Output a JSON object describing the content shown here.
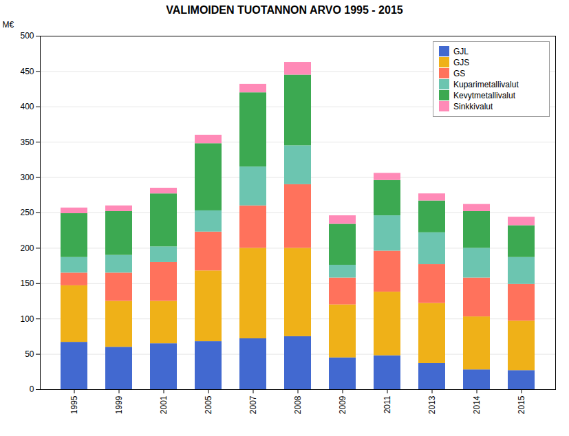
{
  "chart_data": {
    "type": "bar",
    "title": "VALIMOIDEN TUOTANNON ARVO 1995 - 2015",
    "ylabel": "M€",
    "categories": [
      "1995",
      "1999",
      "2001",
      "2005",
      "2007",
      "2008",
      "2009",
      "2011",
      "2013",
      "2014",
      "2015"
    ],
    "series": [
      {
        "name": "GJL",
        "values": [
          67,
          60,
          65,
          68,
          72,
          75,
          45,
          48,
          37,
          28,
          27
        ]
      },
      {
        "name": "GJS",
        "values": [
          80,
          65,
          60,
          100,
          128,
          125,
          75,
          90,
          85,
          75,
          70
        ]
      },
      {
        "name": "GS",
        "values": [
          18,
          40,
          55,
          55,
          60,
          90,
          38,
          58,
          55,
          55,
          52
        ]
      },
      {
        "name": "Kuparimetallivalut",
        "values": [
          22,
          25,
          22,
          30,
          55,
          55,
          18,
          50,
          45,
          42,
          38
        ]
      },
      {
        "name": "Kevytmetallivalut",
        "values": [
          62,
          62,
          75,
          95,
          105,
          100,
          58,
          50,
          45,
          52,
          45
        ]
      },
      {
        "name": "Sinkkivalut",
        "values": [
          8,
          8,
          8,
          12,
          12,
          18,
          12,
          10,
          10,
          10,
          12
        ]
      }
    ],
    "stacked": true,
    "ylim": [
      0,
      500
    ],
    "yticks": [
      0,
      50,
      100,
      150,
      200,
      250,
      300,
      350,
      400,
      450,
      500
    ],
    "grid": true,
    "legend": "upper right"
  }
}
